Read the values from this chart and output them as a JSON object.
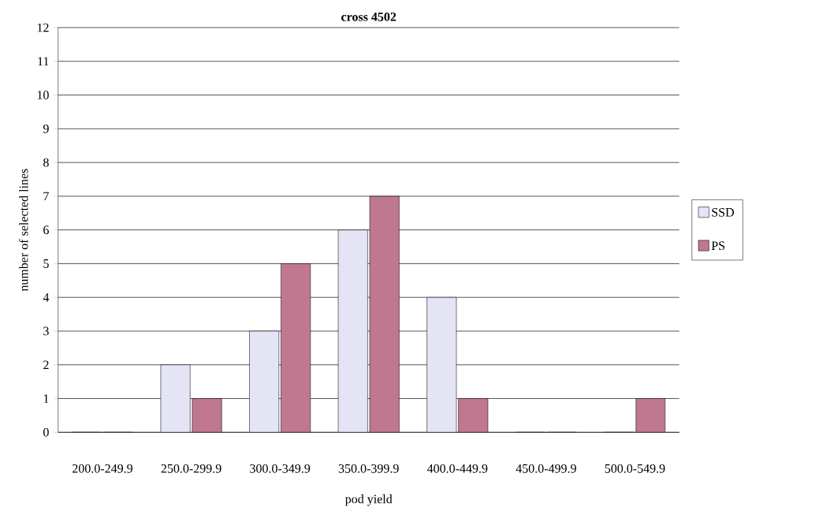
{
  "chart_data": {
    "type": "bar",
    "title": "cross 4502",
    "xlabel": "pod yield",
    "ylabel": "number of selected lines",
    "categories": [
      "200.0-249.9",
      "250.0-299.9",
      "300.0-349.9",
      "350.0-399.9",
      "400.0-449.9",
      "450.0-499.9",
      "500.0-549.9"
    ],
    "series": [
      {
        "name": "SSD",
        "color": "#e4e4f4",
        "values": [
          0,
          2,
          3,
          6,
          4,
          0,
          0
        ]
      },
      {
        "name": "PS",
        "color": "#c07890",
        "values": [
          0,
          1,
          5,
          7,
          1,
          0,
          1
        ]
      }
    ],
    "ylim": [
      0,
      12
    ],
    "yticks": [
      0,
      1,
      2,
      3,
      4,
      5,
      6,
      7,
      8,
      9,
      10,
      11,
      12
    ],
    "grid": "y",
    "legend": "right"
  }
}
